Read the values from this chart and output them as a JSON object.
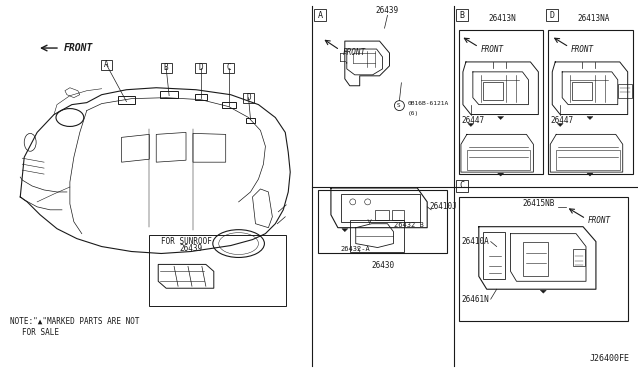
{
  "bg_color": "#ffffff",
  "line_color": "#1a1a1a",
  "fig_width": 6.4,
  "fig_height": 3.72,
  "dpi": 100,
  "footer_ref": "J26400FE",
  "note_line1": "NOTE:\"▲\"MARKED PARTS ARE NOT",
  "note_line2": "       FOR SALE"
}
